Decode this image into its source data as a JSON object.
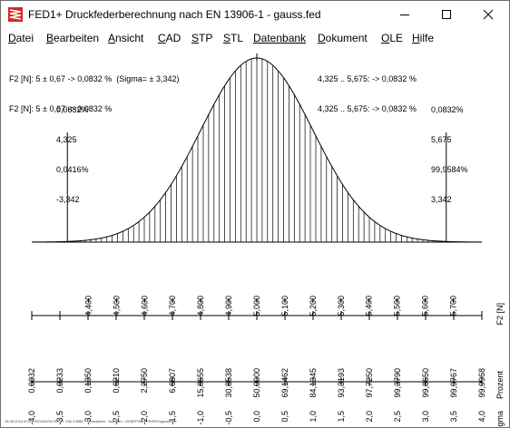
{
  "window": {
    "title": "FED1+  Druckfederberechnung nach EN 13906-1  -  gauss.fed",
    "icon": "spring-app-icon",
    "controls": [
      "minimize",
      "maximize",
      "close"
    ]
  },
  "menu": [
    {
      "label": "Datei",
      "accel": "D",
      "rest": "atei"
    },
    {
      "label": "Bearbeiten",
      "accel": "B",
      "rest": "earbeiten"
    },
    {
      "label": "Ansicht",
      "accel": "A",
      "rest": "nsicht"
    },
    {
      "label": "CAD",
      "accel": "C",
      "rest": "AD"
    },
    {
      "label": "STP",
      "accel": "S",
      "rest": "TP"
    },
    {
      "label": "STL",
      "accel": "S",
      "rest": "TL"
    },
    {
      "label": "Datenbank",
      "accel": "",
      "rest": "Datenbank"
    },
    {
      "label": "Dokument",
      "accel": "D",
      "rest": "okument"
    },
    {
      "label": "OLE",
      "accel": "O",
      "rest": "LE"
    },
    {
      "label": "Hilfe",
      "accel": "H",
      "rest": "ilfe"
    }
  ],
  "stats": {
    "left_line1": "F2 [N]: 5 ± 0,67 -> 0,0832 %  (Sigma= ± 3,342)",
    "left_line2": "F2 [N]: 5 ± 0,67 -> 0,0832 %",
    "right_line1": "4,325 .. 5,675: -> 0,0832 %",
    "right_line2": "4,325 .. 5,675: -> 0,0832 %"
  },
  "markers": {
    "left": [
      "0,0832%",
      "4,325",
      "0,0416%",
      "-3,342"
    ],
    "right": [
      "0,0832%",
      "5,675",
      "99,9584%",
      "3,342"
    ]
  },
  "chart_data": {
    "type": "area",
    "curve": "gaussian",
    "mean": 5.0,
    "lower_limit": 4.325,
    "upper_limit": 5.675,
    "sigma_range": [
      -4,
      4
    ],
    "f2_axis": {
      "label": "F2 [N]",
      "ticks": [
        "4,400",
        "4,500",
        "4,600",
        "4,700",
        "4,800",
        "4,900",
        "5,000",
        "5,100",
        "5,200",
        "5,300",
        "5,400",
        "5,500",
        "5,600",
        "5,700"
      ],
      "values": [
        4.4,
        4.5,
        4.6,
        4.7,
        4.8,
        4.9,
        5.0,
        5.1,
        5.2,
        5.3,
        5.4,
        5.5,
        5.6,
        5.7
      ]
    },
    "percent_axis": {
      "label": "Prozent",
      "ticks": [
        "0,0032",
        "0,0233",
        "0,1350",
        "0,6210",
        "2,2750",
        "6,6807",
        "15,8655",
        "30,8538",
        "50,0000",
        "69,1462",
        "84,1345",
        "93,3193",
        "97,7250",
        "99,3790",
        "99,8650",
        "99,9767",
        "99,9968"
      ]
    },
    "sigma_axis": {
      "label": "Sigma",
      "ticks": [
        "-4,0",
        "-3,5",
        "-3,0",
        "-2,5",
        "-2,0",
        "-1,5",
        "-1,0",
        "-0,5",
        "0,0",
        "0,5",
        "1,0",
        "1,5",
        "2,0",
        "2,5",
        "3,0",
        "3,5",
        "4,0"
      ],
      "values": [
        -4,
        -3.5,
        -3,
        -2.5,
        -2,
        -1.5,
        -1,
        -0.5,
        0,
        0.5,
        1,
        1.5,
        2,
        2.5,
        3,
        3.5,
        4
      ]
    }
  },
  "footer": "28.08.2018 8:01 · HEXAGON FED1+ V30.9 BBD · Federdaten · Auswahl · HSAPP\\NOPFR\\FED\\gauss.fed"
}
